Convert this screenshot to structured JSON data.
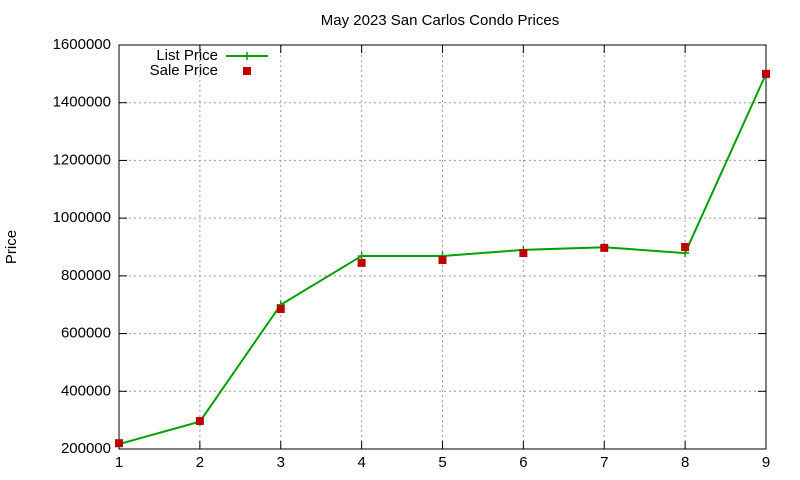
{
  "chart_data": {
    "type": "line",
    "title": "May 2023 San Carlos Condo Prices",
    "y_label": "Price",
    "x": [
      1,
      2,
      3,
      4,
      5,
      6,
      7,
      8,
      9
    ],
    "series": [
      {
        "name": "List Price",
        "color": "#00a000",
        "style": "linespoints",
        "values": [
          217000,
          295000,
          700000,
          869000,
          869000,
          890000,
          899000,
          879000,
          1500000
        ]
      },
      {
        "name": "Sale Price",
        "color": "#c00000",
        "style": "points",
        "values": [
          220000,
          297000,
          685000,
          845000,
          855000,
          879000,
          897000,
          900000,
          1500000
        ]
      }
    ],
    "xlim": [
      1,
      9
    ],
    "xticks": [
      1,
      2,
      3,
      4,
      5,
      6,
      7,
      8,
      9
    ],
    "ylim": [
      200000,
      1600000
    ],
    "yticks": [
      200000,
      400000,
      600000,
      800000,
      1000000,
      1200000,
      1400000,
      1600000
    ],
    "grid": true,
    "legend": "top-left"
  }
}
